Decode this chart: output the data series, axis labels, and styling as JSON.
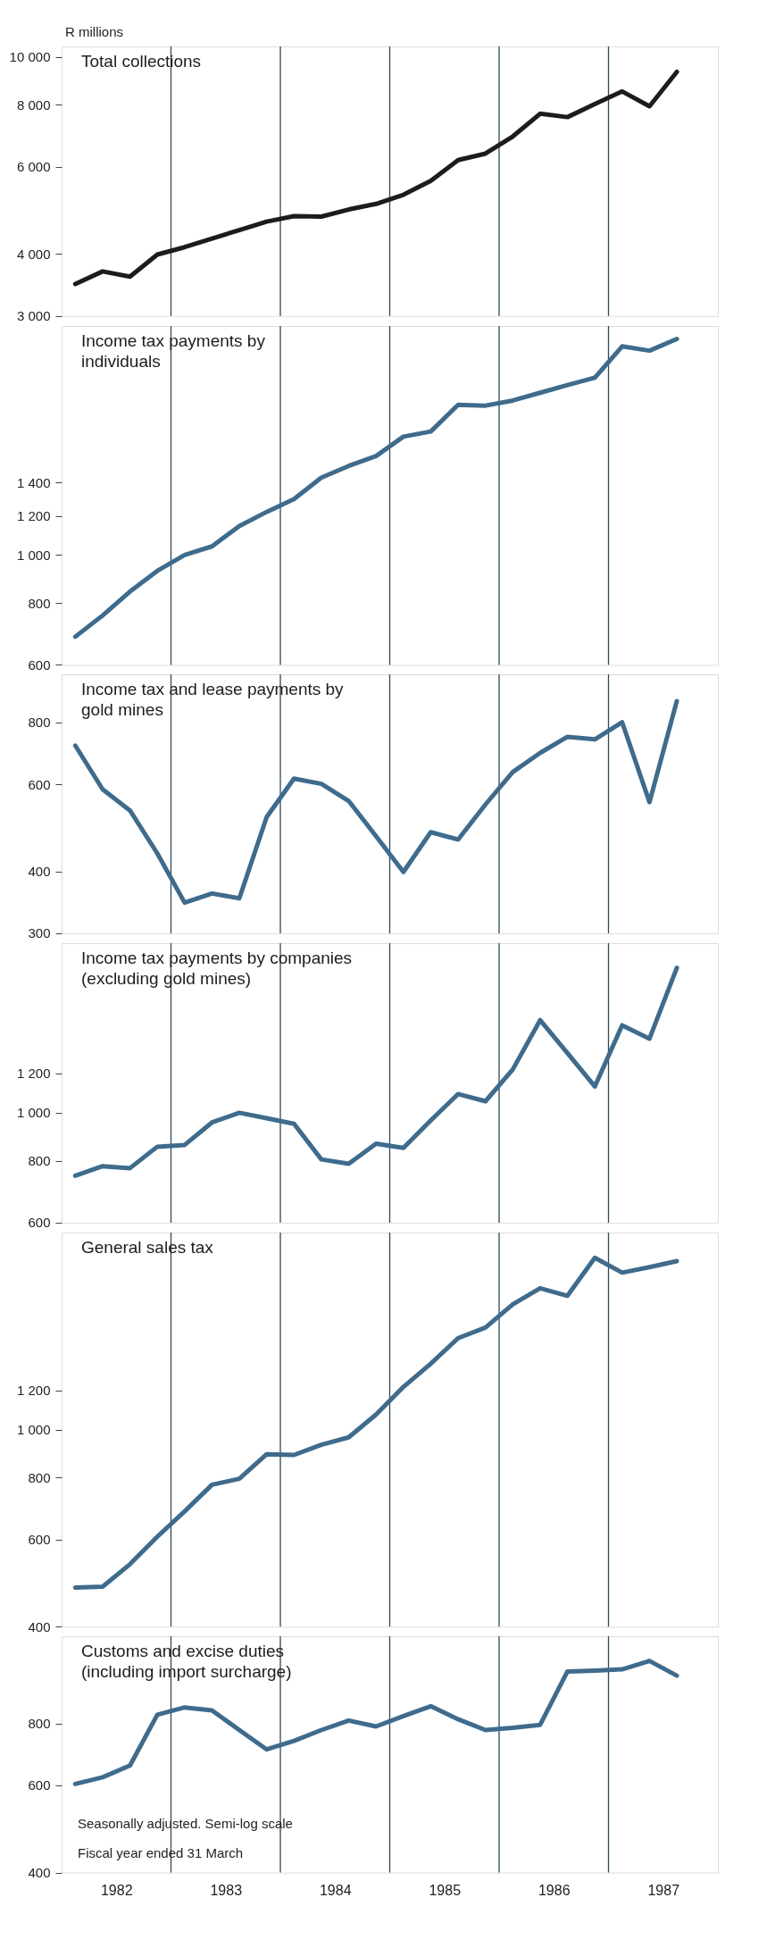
{
  "chart_data": [
    {
      "type": "line",
      "ylabel": "R millions",
      "log": true,
      "tick_labels": "y",
      "x": [
        1981.625,
        1981.875,
        1982.125,
        1982.375,
        1982.625,
        1982.875,
        1983.125,
        1983.375,
        1983.625,
        1983.875,
        1984.125,
        1984.375,
        1984.625,
        1984.875,
        1985.125,
        1985.375,
        1985.625,
        1985.875,
        1986.125,
        1986.375,
        1986.625,
        1986.875,
        1987.125
      ],
      "xlim": [
        1981.5,
        1987.5
      ],
      "xticks": [
        1982,
        1983,
        1984,
        1985,
        1986,
        1987
      ],
      "ylim": [
        3000,
        10500
      ],
      "yticks": [
        {
          "value": 10000,
          "label": "10 000"
        },
        {
          "value": 8000,
          "label": "8 000"
        },
        {
          "value": 6000,
          "label": "6 000"
        },
        {
          "value": 4000,
          "label": "4 000"
        },
        {
          "value": 3000,
          "label": "3 000"
        }
      ],
      "series": [
        {
          "name": "Total collections",
          "color": "#1c1c1c",
          "values": [
            3480,
            3690,
            3600,
            3990,
            4130,
            4300,
            4470,
            4650,
            4770,
            4760,
            4920,
            5050,
            5270,
            5620,
            6190,
            6380,
            6910,
            7680,
            7560,
            8030,
            8520,
            7950,
            9330
          ]
        }
      ],
      "ref_lines": [
        {
          "axis": "x",
          "value": 1982.5,
          "color": "#2e4a5a"
        },
        {
          "axis": "x",
          "value": 1983.5,
          "color": "#2e4a5a"
        },
        {
          "axis": "x",
          "value": 1984.5,
          "color": "#2e4a5a"
        },
        {
          "axis": "x",
          "value": 1985.5,
          "color": "#2e4a5a"
        },
        {
          "axis": "x",
          "value": 1986.5,
          "color": "#2e4a5a"
        }
      ]
    },
    {
      "type": "line",
      "log": true,
      "tick_labels": "y",
      "x": [
        1981.625,
        1981.875,
        1982.125,
        1982.375,
        1982.625,
        1982.875,
        1983.125,
        1983.375,
        1983.625,
        1983.875,
        1984.125,
        1984.375,
        1984.625,
        1984.875,
        1985.125,
        1985.375,
        1985.625,
        1985.875,
        1986.125,
        1986.375,
        1986.625,
        1986.875,
        1987.125
      ],
      "xlim": [
        1981.5,
        1987.5
      ],
      "xticks": [
        1982,
        1983,
        1984,
        1985,
        1986,
        1987
      ],
      "ylim": [
        600,
        2900
      ],
      "yticks": [
        {
          "value": 1400,
          "label": "1 400"
        },
        {
          "value": 1200,
          "label": "1 200"
        },
        {
          "value": 1000,
          "label": "1 000"
        },
        800,
        600
      ],
      "series": [
        {
          "name": "Income tax payments by individuals",
          "color": "#3f6b8c",
          "values": [
            684,
            755,
            844,
            929,
            1000,
            1041,
            1144,
            1222,
            1297,
            1433,
            1513,
            1584,
            1734,
            1776,
            2010,
            2003,
            2051,
            2126,
            2204,
            2280,
            2638,
            2586,
            2730
          ]
        }
      ],
      "ref_lines": [
        {
          "axis": "x",
          "value": 1982.5,
          "color": "#2e4a5a"
        },
        {
          "axis": "x",
          "value": 1983.5,
          "color": "#2e4a5a"
        },
        {
          "axis": "x",
          "value": 1984.5,
          "color": "#2e4a5a"
        },
        {
          "axis": "x",
          "value": 1985.5,
          "color": "#2e4a5a"
        },
        {
          "axis": "x",
          "value": 1986.5,
          "color": "#2e4a5a"
        }
      ]
    },
    {
      "type": "line",
      "log": true,
      "tick_labels": "y",
      "x": [
        1981.625,
        1981.875,
        1982.125,
        1982.375,
        1982.625,
        1982.875,
        1983.125,
        1983.375,
        1983.625,
        1983.875,
        1984.125,
        1984.375,
        1984.625,
        1984.875,
        1985.125,
        1985.375,
        1985.625,
        1985.875,
        1986.125,
        1986.375,
        1986.625,
        1986.875,
        1987.125
      ],
      "xlim": [
        1981.5,
        1987.5
      ],
      "xticks": [
        1982,
        1983,
        1984,
        1985,
        1986,
        1987
      ],
      "ylim": [
        300,
        1000
      ],
      "yticks": [
        800,
        600,
        400,
        300
      ],
      "series": [
        {
          "name": "Income tax and lease payments by gold mines",
          "color": "#3f6b8c",
          "values": [
            718,
            586,
            531,
            435,
            346,
            361,
            353,
            515,
            616,
            601,
            555,
            471,
            399,
            480,
            464,
            546,
            635,
            694,
            748,
            739,
            800,
            552,
            883
          ]
        }
      ],
      "ref_lines": [
        {
          "axis": "x",
          "value": 1982.5,
          "color": "#2e4a5a"
        },
        {
          "axis": "x",
          "value": 1983.5,
          "color": "#2e4a5a"
        },
        {
          "axis": "x",
          "value": 1984.5,
          "color": "#2e4a5a"
        },
        {
          "axis": "x",
          "value": 1985.5,
          "color": "#2e4a5a"
        },
        {
          "axis": "x",
          "value": 1986.5,
          "color": "#2e4a5a"
        }
      ]
    },
    {
      "type": "line",
      "log": true,
      "tick_labels": "y",
      "x": [
        1981.625,
        1981.875,
        1982.125,
        1982.375,
        1982.625,
        1982.875,
        1983.125,
        1983.375,
        1983.625,
        1983.875,
        1984.125,
        1984.375,
        1984.625,
        1984.875,
        1985.125,
        1985.375,
        1985.625,
        1985.875,
        1986.125,
        1986.375,
        1986.625,
        1986.875,
        1987.125
      ],
      "xlim": [
        1981.5,
        1987.5
      ],
      "xticks": [
        1982,
        1983,
        1984,
        1985,
        1986,
        1987
      ],
      "ylim": [
        600,
        2200
      ],
      "yticks": [
        {
          "value": 1200,
          "label": "1 200"
        },
        {
          "value": 1000,
          "label": "1 000"
        },
        800,
        600
      ],
      "series": [
        {
          "name": "Income tax payments by companies (excluding gold mines)",
          "color": "#3f6b8c",
          "values": [
            746,
            780,
            773,
            854,
            861,
            956,
            1000,
            975,
            950,
            805,
            789,
            866,
            849,
            965,
            1091,
            1055,
            1223,
            1538,
            1319,
            1130,
            1502,
            1411,
            1962
          ]
        }
      ],
      "ref_lines": [
        {
          "axis": "x",
          "value": 1982.5,
          "color": "#2e4a5a"
        },
        {
          "axis": "x",
          "value": 1983.5,
          "color": "#2e4a5a"
        },
        {
          "axis": "x",
          "value": 1984.5,
          "color": "#2e4a5a"
        },
        {
          "axis": "x",
          "value": 1985.5,
          "color": "#2e4a5a"
        },
        {
          "axis": "x",
          "value": 1986.5,
          "color": "#2e4a5a"
        }
      ]
    },
    {
      "type": "line",
      "log": true,
      "tick_labels": "y",
      "x": [
        1981.625,
        1981.875,
        1982.125,
        1982.375,
        1982.625,
        1982.875,
        1983.125,
        1983.375,
        1983.625,
        1983.875,
        1984.125,
        1984.375,
        1984.625,
        1984.875,
        1985.125,
        1985.375,
        1985.625,
        1985.875,
        1986.125,
        1986.375,
        1986.625,
        1986.875,
        1987.125
      ],
      "xlim": [
        1981.5,
        1987.5
      ],
      "xticks": [
        1982,
        1983,
        1984,
        1985,
        1986,
        1987
      ],
      "ylim": [
        400,
        2500
      ],
      "yticks": [
        {
          "value": 1200,
          "label": "1 200"
        },
        {
          "value": 1000,
          "label": "1 000"
        },
        800,
        600,
        400
      ],
      "series": [
        {
          "name": "General sales tax",
          "color": "#3f6b8c",
          "values": [
            480,
            482,
            535,
            608,
            684,
            774,
            796,
            892,
            889,
            932,
            965,
            1073,
            1220,
            1359,
            1530,
            1607,
            1791,
            1930,
            1863,
            2223,
            2075,
            2129,
            2189
          ]
        }
      ],
      "ref_lines": [
        {
          "axis": "x",
          "value": 1982.5,
          "color": "#2e4a5a"
        },
        {
          "axis": "x",
          "value": 1983.5,
          "color": "#2e4a5a"
        },
        {
          "axis": "x",
          "value": 1984.5,
          "color": "#2e4a5a"
        },
        {
          "axis": "x",
          "value": 1985.5,
          "color": "#2e4a5a"
        },
        {
          "axis": "x",
          "value": 1986.5,
          "color": "#2e4a5a"
        }
      ]
    },
    {
      "type": "line",
      "log": true,
      "x": [
        1981.625,
        1981.875,
        1982.125,
        1982.375,
        1982.625,
        1982.875,
        1983.125,
        1983.375,
        1983.625,
        1983.875,
        1984.125,
        1984.375,
        1984.625,
        1984.875,
        1985.125,
        1985.375,
        1985.625,
        1985.875,
        1986.125,
        1986.375,
        1986.625,
        1986.875,
        1987.125
      ],
      "xlim": [
        1981.5,
        1987.5
      ],
      "xticks": [
        1982,
        1983,
        1984,
        1985,
        1986,
        1987
      ],
      "ylim": [
        400,
        1200
      ],
      "yticks": [
        800,
        600,
        400
      ],
      "series": [
        {
          "name": "Customs and excise duties (including import surcharge)",
          "color": "#3f6b8c",
          "values": [
            604,
            623,
            658,
            833,
            862,
            850,
            776,
            709,
            738,
            776,
            811,
            789,
            828,
            867,
            816,
            776,
            784,
            795,
            1019,
            1023,
            1029,
            1070,
            999
          ]
        }
      ],
      "ref_lines": [
        {
          "axis": "x",
          "value": 1982.5,
          "color": "#2e4a5a"
        },
        {
          "axis": "x",
          "value": 1983.5,
          "color": "#2e4a5a"
        },
        {
          "axis": "x",
          "value": 1984.5,
          "color": "#2e4a5a"
        },
        {
          "axis": "x",
          "value": 1985.5,
          "color": "#2e4a5a"
        },
        {
          "axis": "x",
          "value": 1986.5,
          "color": "#2e4a5a"
        }
      ],
      "annotations": [
        "Seasonally adjusted. Semi-log scale",
        "Fiscal year ended 31 March"
      ]
    }
  ]
}
